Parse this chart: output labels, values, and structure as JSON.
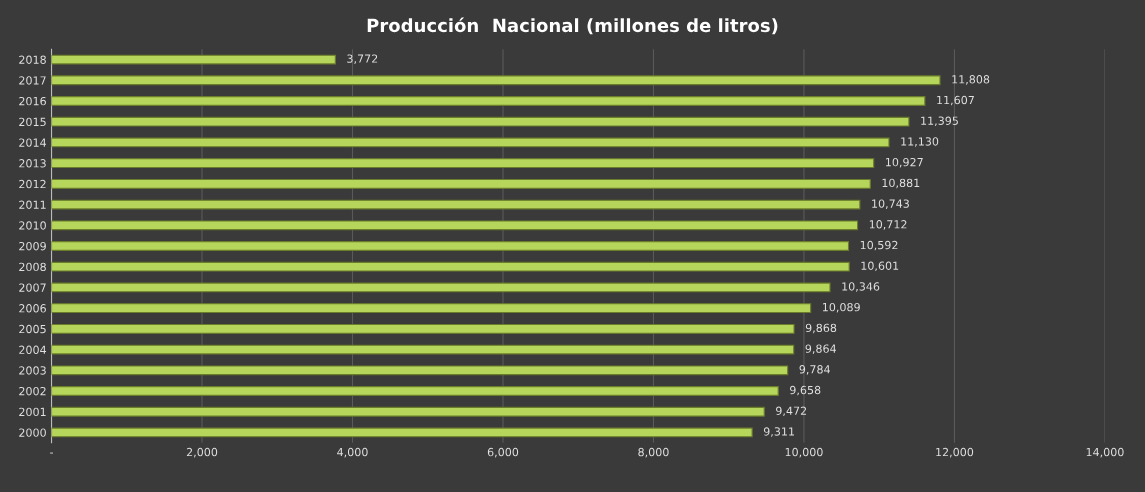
{
  "chart_data": {
    "type": "bar",
    "orientation": "horizontal",
    "title": "Producción  Nacional (millones de litros)",
    "categories": [
      "2018",
      "2017",
      "2016",
      "2015",
      "2014",
      "2013",
      "2012",
      "2011",
      "2010",
      "2009",
      "2008",
      "2007",
      "2006",
      "2005",
      "2004",
      "2003",
      "2002",
      "2001",
      "2000"
    ],
    "values": [
      3772,
      11808,
      11607,
      11395,
      11130,
      10927,
      10881,
      10743,
      10712,
      10592,
      10601,
      10346,
      10089,
      9868,
      9864,
      9784,
      9658,
      9472,
      9311
    ],
    "value_labels": [
      "3,772",
      "11,808",
      "11,607",
      "11,395",
      "11,130",
      "10,927",
      "10,881",
      "10,743",
      "10,712",
      "10,592",
      "10,601",
      "10,346",
      "10,089",
      "9,868",
      "9,864",
      "9,784",
      "9,658",
      "9,472",
      "9,311"
    ],
    "color": "#b5d65a",
    "xlim": [
      0,
      14000
    ],
    "xticks": [
      {
        "value": 0,
        "label": "-"
      },
      {
        "value": 2000,
        "label": "2,000"
      },
      {
        "value": 4000,
        "label": "4,000"
      },
      {
        "value": 6000,
        "label": "6,000"
      },
      {
        "value": 8000,
        "label": "8,000"
      },
      {
        "value": 10000,
        "label": "10,000"
      },
      {
        "value": 12000,
        "label": "12,000"
      },
      {
        "value": 14000,
        "label": "14,000"
      }
    ],
    "grid": "x"
  }
}
